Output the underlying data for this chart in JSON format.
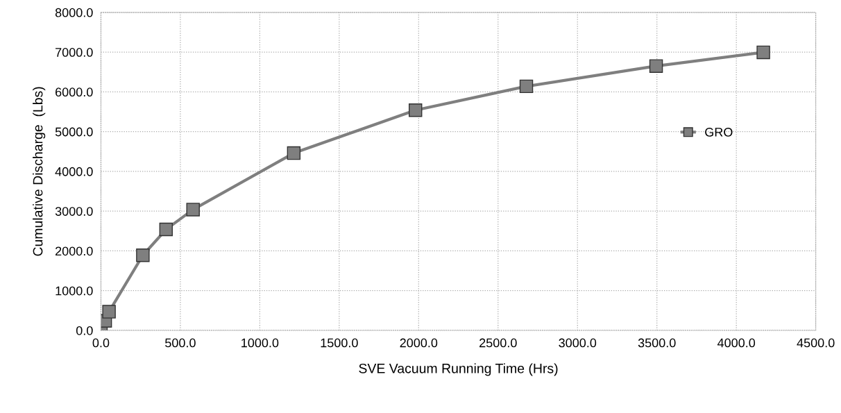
{
  "chart_data": {
    "type": "line",
    "xlabel": "SVE Vacuum Running Time (Hrs)",
    "ylabel": "Cumulative Discharge  (Lbs)",
    "x": [
      0,
      27,
      51,
      264,
      410,
      580,
      1214,
      1980,
      2678,
      3495,
      4170
    ],
    "series": [
      {
        "name": "GRO",
        "color": "#7f7f7f",
        "values": [
          0,
          240,
          470,
          1890,
          2540,
          3040,
          4460,
          5540,
          6140,
          6650,
          6995
        ]
      }
    ],
    "xlim": [
      0,
      4500
    ],
    "xticks": [
      {
        "value": 0,
        "label": "0.0"
      },
      {
        "value": 500,
        "label": "500.0"
      },
      {
        "value": 1000,
        "label": "1000.0"
      },
      {
        "value": 1500,
        "label": "1500.0"
      },
      {
        "value": 2000,
        "label": "2000.0"
      },
      {
        "value": 2500,
        "label": "2500.0"
      },
      {
        "value": 3000,
        "label": "3000.0"
      },
      {
        "value": 3500,
        "label": "3500.0"
      },
      {
        "value": 4000,
        "label": "4000.0"
      },
      {
        "value": 4500,
        "label": "4500.0"
      }
    ],
    "ylim": [
      0,
      8000
    ],
    "yticks": [
      {
        "value": 0,
        "label": "0.0"
      },
      {
        "value": 1000,
        "label": "1000.0"
      },
      {
        "value": 2000,
        "label": "2000.0"
      },
      {
        "value": 3000,
        "label": "3000.0"
      },
      {
        "value": 4000,
        "label": "4000.0"
      },
      {
        "value": 5000,
        "label": "5000.0"
      },
      {
        "value": 6000,
        "label": "6000.0"
      },
      {
        "value": 7000,
        "label": "7000.0"
      },
      {
        "value": 8000,
        "label": "8000.0"
      }
    ],
    "grid": true,
    "legend": "right",
    "marker": "square",
    "line_style": "solid"
  }
}
